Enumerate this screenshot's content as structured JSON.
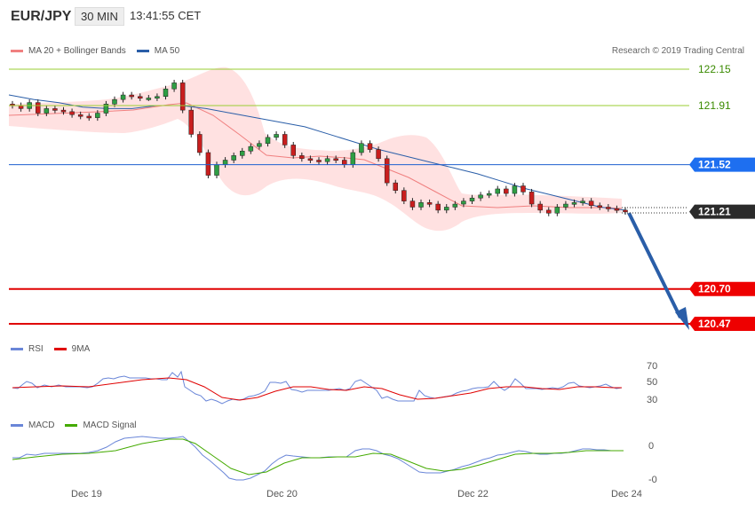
{
  "header": {
    "symbol": "EUR/JPY",
    "timeframe": "30 MIN",
    "time": "13:41:55 CET"
  },
  "legend_main": [
    {
      "label": "MA 20 + Bollinger Bands",
      "color": "#f08080"
    },
    {
      "label": "MA 50",
      "color": "#2a5ea8"
    }
  ],
  "credit": "Research © 2019 Trading Central",
  "price_levels": [
    {
      "label": "122.15",
      "value": 122.15,
      "style": "green-line"
    },
    {
      "label": "121.91",
      "value": 121.91,
      "style": "green-line"
    },
    {
      "label": "121.52",
      "value": 121.52,
      "style": "blue-flag"
    },
    {
      "label": "121.21",
      "value": 121.21,
      "style": "current-dark"
    },
    {
      "label": "120.70",
      "value": 120.7,
      "style": "red-flag"
    },
    {
      "label": "120.47",
      "value": 120.47,
      "style": "red-flag"
    }
  ],
  "x_labels": [
    "Dec 19",
    "Dec 20",
    "Dec 22",
    "Dec 24"
  ],
  "rsi": {
    "legend": [
      {
        "label": "RSI",
        "color": "#6a86d8"
      },
      {
        "label": "9MA",
        "color": "#e00000"
      }
    ],
    "ticks": [
      "70",
      "50",
      "30"
    ]
  },
  "macd": {
    "legend": [
      {
        "label": "MACD",
        "color": "#6a86d8"
      },
      {
        "label": "MACD Signal",
        "color": "#44aa00"
      }
    ],
    "ticks": [
      "0",
      "-0"
    ]
  },
  "chart_data": {
    "type": "line",
    "title": "EUR/JPY 30 MIN",
    "x_labels": [
      "Dec 19",
      "Dec 20",
      "Dec 22",
      "Dec 24"
    ],
    "price_axis_labels": [
      122.15,
      121.91,
      121.52,
      121.21,
      120.7,
      120.47
    ],
    "series": [
      {
        "name": "Close",
        "values": [
          121.91,
          121.89,
          121.93,
          121.86,
          121.89,
          121.88,
          121.87,
          121.85,
          121.84,
          121.83,
          121.86,
          121.92,
          121.95,
          121.98,
          121.97,
          121.96,
          121.96,
          121.97,
          122.02,
          122.06,
          121.88,
          121.72,
          121.6,
          121.45,
          121.52,
          121.55,
          121.58,
          121.61,
          121.64,
          121.66,
          121.7,
          121.72,
          121.65,
          121.58,
          121.56,
          121.55,
          121.54,
          121.56,
          121.55,
          121.52,
          121.6,
          121.66,
          121.62,
          121.56,
          121.4,
          121.35,
          121.28,
          121.24,
          121.27,
          121.26,
          121.22,
          121.24,
          121.26,
          121.28,
          121.3,
          121.32,
          121.33,
          121.36,
          121.33,
          121.38,
          121.34,
          121.26,
          121.22,
          121.2,
          121.24,
          121.26,
          121.27,
          121.28,
          121.25,
          121.24,
          121.23,
          121.22,
          121.21
        ]
      },
      {
        "name": "MA 50",
        "values": [
          121.98,
          121.95,
          121.93,
          121.9,
          121.89,
          121.89,
          121.91,
          121.91,
          121.89,
          121.86,
          121.83,
          121.8,
          121.77,
          121.72,
          121.67,
          121.62,
          121.58,
          121.54,
          121.5,
          121.46,
          121.41,
          121.36,
          121.32,
          121.28,
          121.24,
          121.22
        ]
      }
    ],
    "forecast_path": [
      121.21,
      120.47
    ],
    "grid": false
  }
}
